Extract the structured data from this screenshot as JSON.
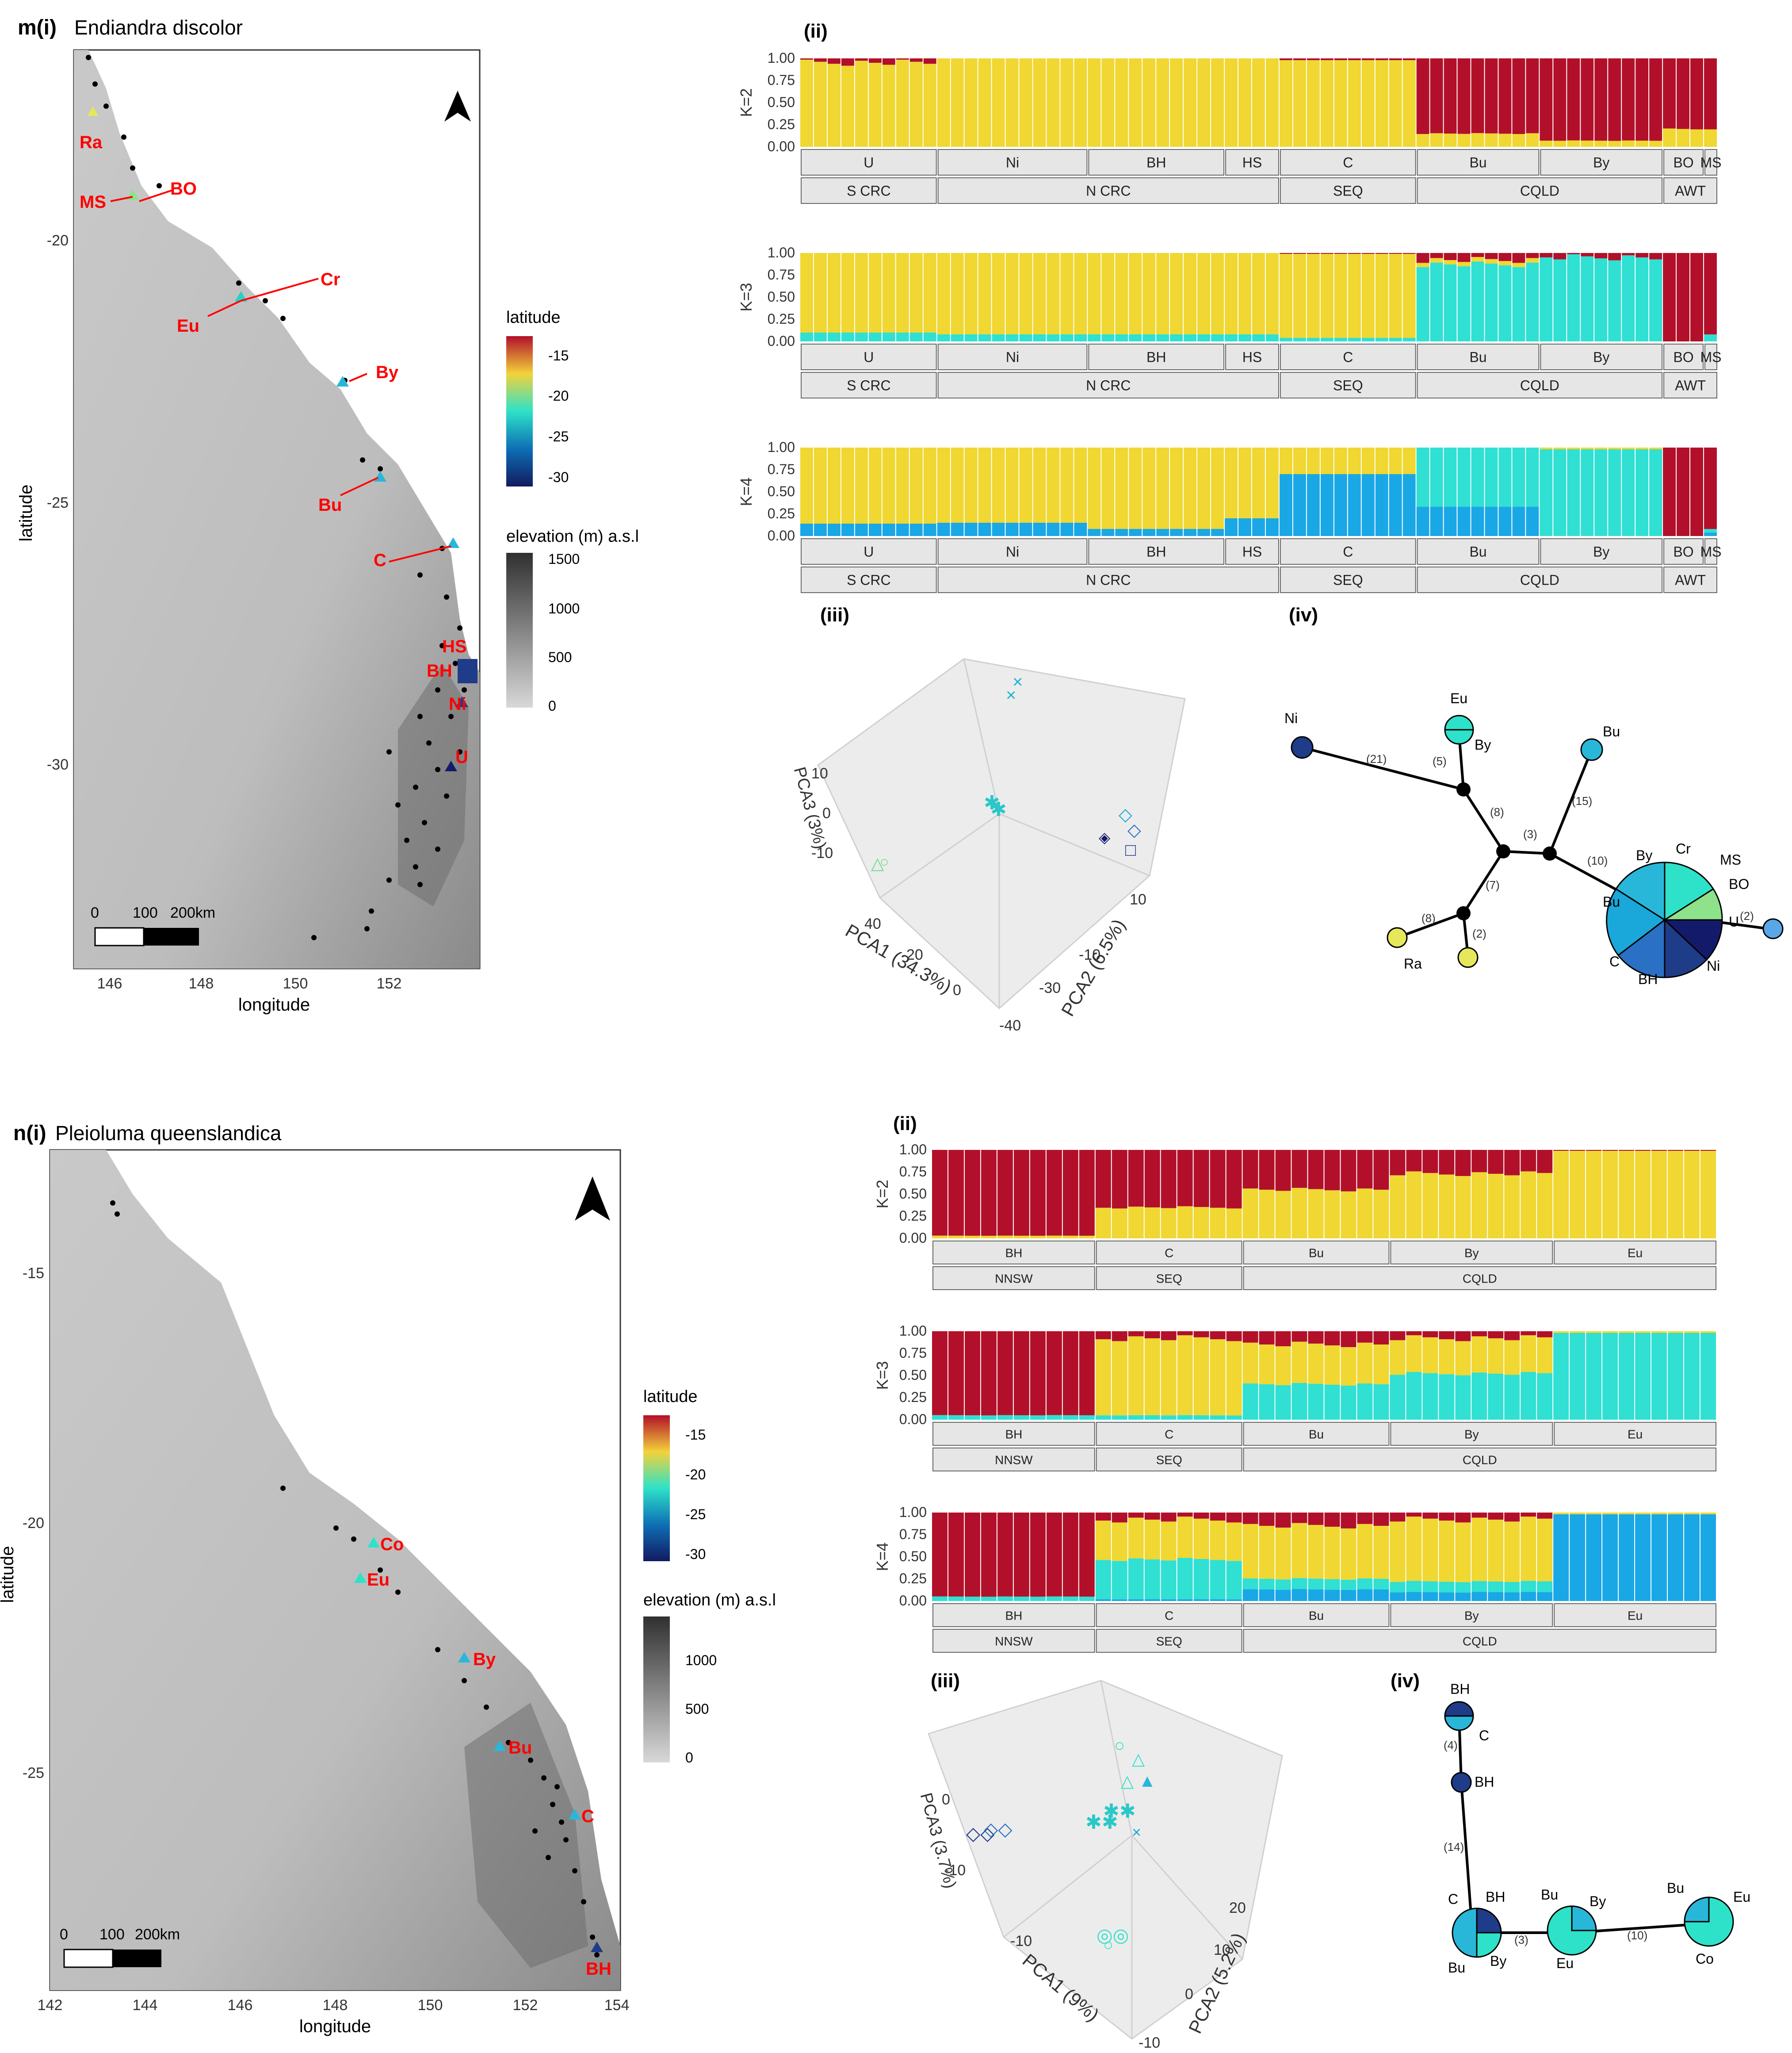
{
  "panel_m": {
    "map": {
      "label_prefix": "m(i)",
      "species": "Endiandra discolor",
      "x_title": "longitude",
      "y_title": "latitude",
      "x_ticks": [
        "146",
        "148",
        "150",
        "152"
      ],
      "y_ticks": [
        "-20",
        "-25",
        "-30"
      ],
      "scale_bar": {
        "zero": "0",
        "mid": "100",
        "end": "200km"
      },
      "legend_latitude": {
        "title": "latitude",
        "ticks": [
          "-15",
          "-20",
          "-25",
          "-30"
        ]
      },
      "legend_elevation": {
        "title": "elevation (m) a.s.l",
        "ticks": [
          "1500",
          "1000",
          "500",
          "0"
        ]
      },
      "site_labels": [
        "Ra",
        "MS",
        "BO",
        "Cr",
        "Eu",
        "By",
        "Bu",
        "C",
        "HS",
        "BH",
        "Ni",
        "U"
      ],
      "colors": {
        "accent_label": "#ff0000"
      }
    },
    "structure": {
      "label": "(ii)",
      "y_ticks": [
        "1.00",
        "0.75",
        "0.50",
        "0.25",
        "0.00"
      ],
      "panels": [
        {
          "k": "K=2",
          "pops": [
            "U",
            "Ni",
            "BH",
            "HS",
            "C",
            "Bu",
            "By",
            "BO",
            "MS"
          ],
          "regions": [
            "S CRC",
            "N CRC",
            "SEQ",
            "CQLD",
            "AWT"
          ]
        },
        {
          "k": "K=3",
          "pops": [
            "U",
            "Ni",
            "BH",
            "HS",
            "C",
            "Bu",
            "By",
            "BO",
            "MS"
          ],
          "regions": [
            "S CRC",
            "N CRC",
            "SEQ",
            "CQLD",
            "AWT"
          ]
        },
        {
          "k": "K=4",
          "pops": [
            "U",
            "Ni",
            "BH",
            "HS",
            "C",
            "Bu",
            "By",
            "BO",
            "MS"
          ],
          "regions": [
            "S CRC",
            "N CRC",
            "SEQ",
            "CQLD",
            "AWT"
          ]
        }
      ]
    },
    "pca": {
      "label": "(iii)",
      "axis1": "PCA1 (34.3%)",
      "axis2": "PCA2 (6.5%)",
      "axis3": "PCA3 (3%)",
      "axis1_ticks": [
        "40",
        "20",
        "0"
      ],
      "axis2_ticks": [
        "10",
        "-10",
        "-30",
        "-40"
      ],
      "axis3_ticks": [
        "10",
        "0",
        "-10"
      ]
    },
    "network": {
      "label": "(iv)",
      "node_labels": [
        "Ni",
        "Eu",
        "By",
        "Bu",
        "Ra",
        "Cr",
        "MS",
        "BO",
        "U",
        "Bu",
        "C",
        "BH",
        "Ni",
        "By"
      ],
      "edge_labels": [
        "(21)",
        "(5)",
        "(8)",
        "(3)",
        "(15)",
        "(10)",
        "(7)",
        "(8)",
        "(2)",
        "(2)"
      ]
    }
  },
  "panel_n": {
    "map": {
      "label_prefix": "n(i)",
      "species": "Pleioluma queenslandica",
      "x_title": "longitude",
      "y_title": "latitude",
      "x_ticks": [
        "142",
        "144",
        "146",
        "148",
        "150",
        "152",
        "154"
      ],
      "y_ticks": [
        "-15",
        "-20",
        "-25"
      ],
      "scale_bar": {
        "zero": "0",
        "mid": "100",
        "end": "200km"
      },
      "legend_latitude": {
        "title": "latitude",
        "ticks": [
          "-15",
          "-20",
          "-25",
          "-30"
        ]
      },
      "legend_elevation": {
        "title": "elevation (m) a.s.l",
        "ticks": [
          "1000",
          "500",
          "0"
        ]
      },
      "site_labels": [
        "Co",
        "Eu",
        "By",
        "Bu",
        "C",
        "BH"
      ]
    },
    "structure": {
      "label": "(ii)",
      "y_ticks": [
        "1.00",
        "0.75",
        "0.50",
        "0.25",
        "0.00"
      ],
      "panels": [
        {
          "k": "K=2",
          "pops": [
            "BH",
            "C",
            "Bu",
            "By",
            "Eu"
          ],
          "regions": [
            "NNSW",
            "SEQ",
            "CQLD"
          ]
        },
        {
          "k": "K=3",
          "pops": [
            "BH",
            "C",
            "Bu",
            "By",
            "Eu"
          ],
          "regions": [
            "NNSW",
            "SEQ",
            "CQLD"
          ]
        },
        {
          "k": "K=4",
          "pops": [
            "BH",
            "C",
            "Bu",
            "By",
            "Eu"
          ],
          "regions": [
            "NNSW",
            "SEQ",
            "CQLD"
          ]
        }
      ]
    },
    "pca": {
      "label": "(iii)",
      "axis1": "PCA1 (9%)",
      "axis2": "PCA2 (5.2%)",
      "axis3": "PCA3 (3.7%)",
      "axis1_ticks": [
        "-10"
      ],
      "axis2_ticks": [
        "20",
        "10",
        "0",
        "-10"
      ],
      "axis3_ticks": [
        "0",
        "-10"
      ]
    },
    "network": {
      "label": "(iv)",
      "node_labels": [
        "BH",
        "C",
        "BH",
        "C",
        "BH",
        "Bu",
        "By",
        "Bu",
        "By",
        "Eu",
        "Bu",
        "Eu",
        "Co"
      ],
      "edge_labels": [
        "(4)",
        "(14)",
        "(3)",
        "(10)"
      ]
    }
  },
  "chart_data": [
    {
      "type": "bar",
      "title": "Endiandra discolor K=2",
      "ylim": [
        0,
        1
      ],
      "populations": [
        "U",
        "Ni",
        "BH",
        "HS",
        "C",
        "Bu",
        "By",
        "BO",
        "MS"
      ],
      "individuals_per_pop": [
        10,
        11,
        10,
        4,
        10,
        9,
        9,
        3,
        1
      ],
      "series": [
        {
          "name": "red",
          "values": [
            0.05,
            0.0,
            0.0,
            0.0,
            0.02,
            0.85,
            0.93,
            0.8,
            0.8
          ]
        },
        {
          "name": "yellow",
          "values": [
            0.95,
            1.0,
            1.0,
            1.0,
            0.98,
            0.15,
            0.07,
            0.2,
            0.2
          ]
        }
      ]
    },
    {
      "type": "bar",
      "title": "Endiandra discolor K=3",
      "ylim": [
        0,
        1
      ],
      "populations": [
        "U",
        "Ni",
        "BH",
        "HS",
        "C",
        "Bu",
        "By",
        "BO",
        "MS"
      ],
      "series": [
        {
          "name": "red",
          "values": [
            0.0,
            0.0,
            0.0,
            0.0,
            0.01,
            0.08,
            0.05,
            1.0,
            0.92
          ]
        },
        {
          "name": "yellow",
          "values": [
            0.9,
            0.92,
            0.92,
            0.92,
            0.95,
            0.05,
            0.0,
            0.0,
            0.0
          ]
        },
        {
          "name": "cyan",
          "values": [
            0.1,
            0.08,
            0.08,
            0.08,
            0.04,
            0.87,
            0.95,
            0.0,
            0.08
          ]
        }
      ]
    },
    {
      "type": "bar",
      "title": "Endiandra discolor K=4",
      "ylim": [
        0,
        1
      ],
      "populations": [
        "U",
        "Ni",
        "BH",
        "HS",
        "C",
        "Bu",
        "By",
        "BO",
        "MS"
      ],
      "series": [
        {
          "name": "red",
          "values": [
            0.0,
            0.0,
            0.0,
            0.0,
            0.0,
            0.0,
            0.0,
            1.0,
            0.92
          ]
        },
        {
          "name": "yellow",
          "values": [
            0.86,
            0.85,
            0.92,
            0.8,
            0.3,
            0.0,
            0.02,
            0.0,
            0.0
          ]
        },
        {
          "name": "cyan",
          "values": [
            0.0,
            0.0,
            0.0,
            0.0,
            0.0,
            0.67,
            0.98,
            0.0,
            0.04
          ]
        },
        {
          "name": "blue",
          "values": [
            0.14,
            0.15,
            0.08,
            0.2,
            0.7,
            0.33,
            0.0,
            0.0,
            0.04
          ]
        }
      ]
    },
    {
      "type": "bar",
      "title": "Pleioluma queenslandica K=2",
      "ylim": [
        0,
        1
      ],
      "populations": [
        "BH",
        "C",
        "Bu",
        "By",
        "Eu"
      ],
      "individuals_per_pop": [
        10,
        9,
        9,
        10,
        10
      ],
      "series": [
        {
          "name": "red",
          "values": [
            0.97,
            0.65,
            0.45,
            0.27,
            0.01
          ]
        },
        {
          "name": "yellow",
          "values": [
            0.03,
            0.35,
            0.55,
            0.73,
            0.99
          ]
        }
      ]
    },
    {
      "type": "bar",
      "title": "Pleioluma queenslandica K=3",
      "ylim": [
        0,
        1
      ],
      "populations": [
        "BH",
        "C",
        "Bu",
        "By",
        "Eu"
      ],
      "series": [
        {
          "name": "red",
          "values": [
            0.95,
            0.08,
            0.15,
            0.08,
            0.0
          ]
        },
        {
          "name": "yellow",
          "values": [
            0.0,
            0.87,
            0.45,
            0.4,
            0.02
          ]
        },
        {
          "name": "cyan",
          "values": [
            0.05,
            0.05,
            0.4,
            0.52,
            0.98
          ]
        }
      ]
    },
    {
      "type": "bar",
      "title": "Pleioluma queenslandica K=4",
      "ylim": [
        0,
        1
      ],
      "populations": [
        "BH",
        "C",
        "Bu",
        "By",
        "Eu"
      ],
      "series": [
        {
          "name": "red",
          "values": [
            0.95,
            0.08,
            0.15,
            0.08,
            0.0
          ]
        },
        {
          "name": "yellow",
          "values": [
            0.0,
            0.45,
            0.6,
            0.7,
            0.02
          ]
        },
        {
          "name": "cyan",
          "values": [
            0.05,
            0.45,
            0.12,
            0.12,
            0.0
          ]
        },
        {
          "name": "blue",
          "values": [
            0.0,
            0.02,
            0.13,
            0.1,
            0.98
          ]
        }
      ]
    }
  ]
}
